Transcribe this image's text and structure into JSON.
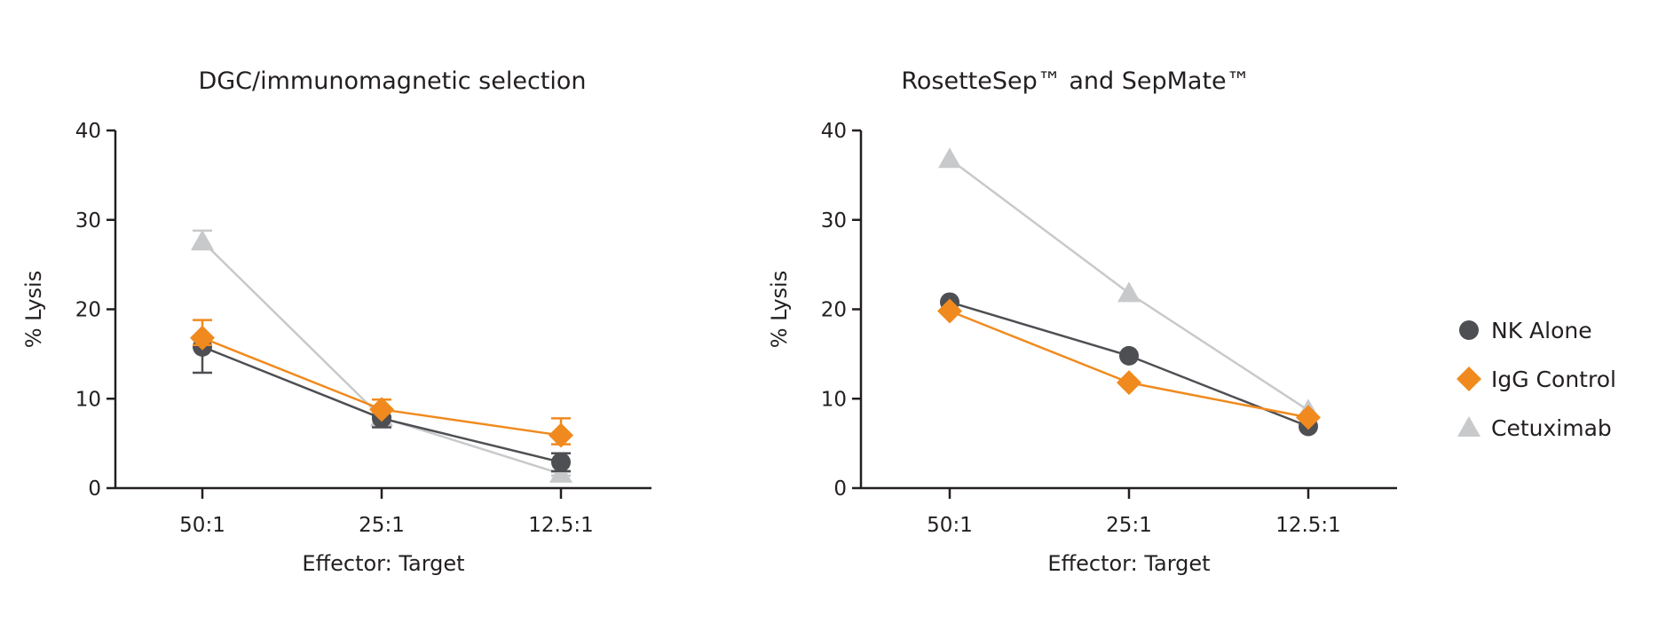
{
  "colors": {
    "NK Alone": "#4d4f53",
    "IgG Control": "#f08a1e",
    "Cetuximab": "#c8c9cb",
    "axis": "#231f20"
  },
  "legend": {
    "placement": "right",
    "items": [
      {
        "label": "NK Alone",
        "marker": "circle"
      },
      {
        "label": "IgG Control",
        "marker": "diamond"
      },
      {
        "label": "Cetuximab",
        "marker": "triangle"
      }
    ]
  },
  "chart_data": [
    {
      "type": "line",
      "title": "DGC/immunomagnetic selection",
      "xlabel": "Effector: Target",
      "ylabel": "% Lysis",
      "categories": [
        "50:1",
        "25:1",
        "12.5:1"
      ],
      "ylim": [
        0,
        40
      ],
      "yticks": [
        "0",
        "10",
        "20",
        "30",
        "40"
      ],
      "grid": false,
      "series": [
        {
          "name": "NK Alone",
          "values": [
            15.8,
            7.8,
            2.9
          ],
          "err_low": [
            12.9,
            6.8,
            1.9
          ],
          "err_high": [
            16.0,
            8.0,
            3.9
          ]
        },
        {
          "name": "IgG Control",
          "values": [
            16.8,
            8.8,
            5.9
          ],
          "err_low": [
            16.0,
            8.5,
            4.9
          ],
          "err_high": [
            18.8,
            9.9,
            7.8
          ]
        },
        {
          "name": "Cetuximab",
          "values": [
            27.6,
            7.9,
            1.6
          ],
          "err_low": [
            26.7,
            7.7,
            1.4
          ],
          "err_high": [
            28.8,
            8.1,
            1.8
          ]
        }
      ]
    },
    {
      "type": "line",
      "title": "RosetteSep™ and SepMate™",
      "xlabel": "Effector: Target",
      "ylabel": "% Lysis",
      "categories": [
        "50:1",
        "25:1",
        "12.5:1"
      ],
      "ylim": [
        0,
        40
      ],
      "yticks": [
        "0",
        "10",
        "20",
        "30",
        "40"
      ],
      "grid": false,
      "series": [
        {
          "name": "NK Alone",
          "values": [
            20.8,
            14.8,
            6.9
          ]
        },
        {
          "name": "IgG Control",
          "values": [
            19.8,
            11.8,
            7.9
          ]
        },
        {
          "name": "Cetuximab",
          "values": [
            36.8,
            21.8,
            8.7
          ]
        }
      ]
    }
  ]
}
